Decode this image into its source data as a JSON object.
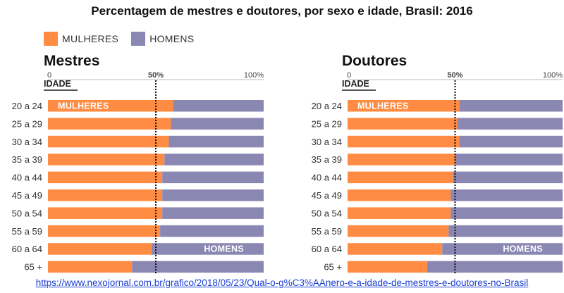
{
  "title": "Percentagem de mestres e doutores, por sexo e idade, Brasil: 2016",
  "legend": [
    {
      "label": "MULHERES",
      "color": "#FF8C42"
    },
    {
      "label": "HOMENS",
      "color": "#8B87B3"
    }
  ],
  "source_link": "https://www.nexojornal.com.br/grafico/2018/05/23/Qual-o-g%C3%AAnero-e-a-idade-de-mestres-e-doutores-no-Brasil",
  "chart_data": [
    {
      "type": "bar",
      "stacked": true,
      "orientation": "horizontal",
      "title": "Mestres",
      "ylabel": "IDADE",
      "xlim": [
        0,
        100
      ],
      "x_ticks": [
        "0",
        "50%",
        "100%"
      ],
      "reference_line": 50,
      "categories": [
        "20 a 24",
        "25 a 29",
        "30 a 34",
        "35 a 39",
        "40 a 44",
        "45 a 49",
        "50 a 54",
        "55 a 59",
        "60 a 64",
        "65 +"
      ],
      "series": [
        {
          "name": "MULHERES",
          "values": [
            58,
            57,
            56,
            54,
            53,
            53,
            53,
            52,
            48,
            39
          ]
        },
        {
          "name": "HOMENS",
          "values": [
            42,
            43,
            44,
            46,
            47,
            47,
            47,
            48,
            52,
            61
          ]
        }
      ],
      "bar_labels": [
        {
          "text": "MULHERES",
          "series": "MULHERES",
          "category": "20 a 24"
        },
        {
          "text": "HOMENS",
          "series": "HOMENS",
          "category": "60 a 64"
        }
      ]
    },
    {
      "type": "bar",
      "stacked": true,
      "orientation": "horizontal",
      "title": "Doutores",
      "ylabel": "IDADE",
      "xlim": [
        0,
        100
      ],
      "x_ticks": [
        "0",
        "50%",
        "100%"
      ],
      "reference_line": 50,
      "categories": [
        "20 a 24",
        "25 a 29",
        "30 a 34",
        "35 a 39",
        "40 a 44",
        "45 a 49",
        "50 a 54",
        "55 a 59",
        "60 a 64",
        "65 +"
      ],
      "series": [
        {
          "name": "MULHERES",
          "values": [
            52,
            51,
            52,
            50,
            49,
            48,
            48,
            47,
            44,
            37
          ]
        },
        {
          "name": "HOMENS",
          "values": [
            48,
            49,
            48,
            50,
            51,
            52,
            52,
            53,
            56,
            63
          ]
        }
      ],
      "bar_labels": [
        {
          "text": "MULHERES",
          "series": "MULHERES",
          "category": "20 a 24"
        },
        {
          "text": "HOMENS",
          "series": "HOMENS",
          "category": "60 a 64"
        }
      ]
    }
  ]
}
